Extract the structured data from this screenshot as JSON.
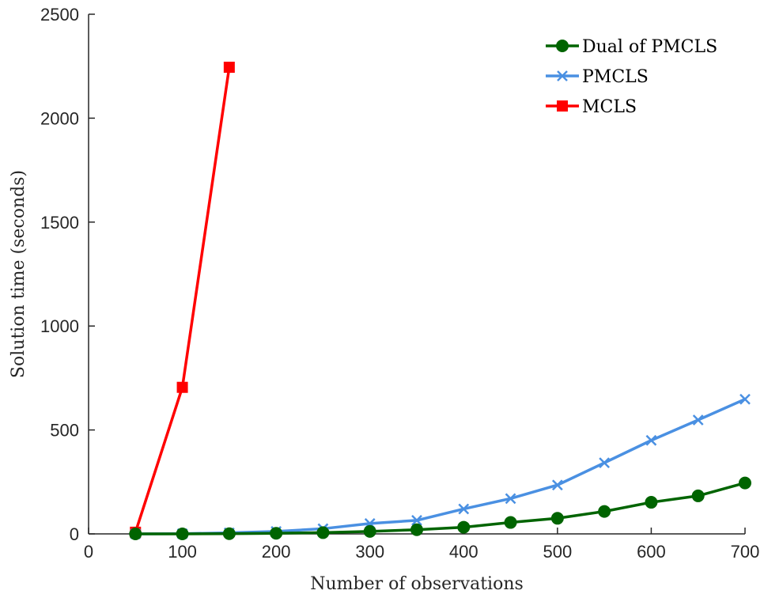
{
  "chart_data": {
    "type": "line",
    "title": "",
    "xlabel": "Number of observations",
    "ylabel": "Solution time (seconds)",
    "xlim": [
      0,
      700
    ],
    "ylim": [
      0,
      2500
    ],
    "xticks": [
      0,
      100,
      200,
      300,
      400,
      500,
      600,
      700
    ],
    "yticks": [
      0,
      500,
      1000,
      1500,
      2000,
      2500
    ],
    "grid": false,
    "legend_position": "top-right",
    "series": [
      {
        "name": "Dual of PMCLS",
        "color": "#006400",
        "marker": "circle",
        "x": [
          50,
          100,
          150,
          200,
          250,
          300,
          350,
          400,
          450,
          500,
          550,
          600,
          650,
          700
        ],
        "y": [
          0,
          0,
          1,
          3,
          6,
          12,
          20,
          32,
          55,
          75,
          108,
          152,
          183,
          245
        ]
      },
      {
        "name": "PMCLS",
        "color": "#4a90e2",
        "marker": "x",
        "x": [
          50,
          100,
          150,
          200,
          250,
          300,
          350,
          400,
          450,
          500,
          550,
          600,
          650,
          700
        ],
        "y": [
          0,
          1,
          5,
          12,
          25,
          50,
          65,
          120,
          170,
          235,
          342,
          450,
          548,
          648
        ]
      },
      {
        "name": "MCLS",
        "color": "#ff0000",
        "marker": "square",
        "x": [
          50,
          100,
          150
        ],
        "y": [
          8,
          705,
          2245
        ]
      }
    ]
  }
}
